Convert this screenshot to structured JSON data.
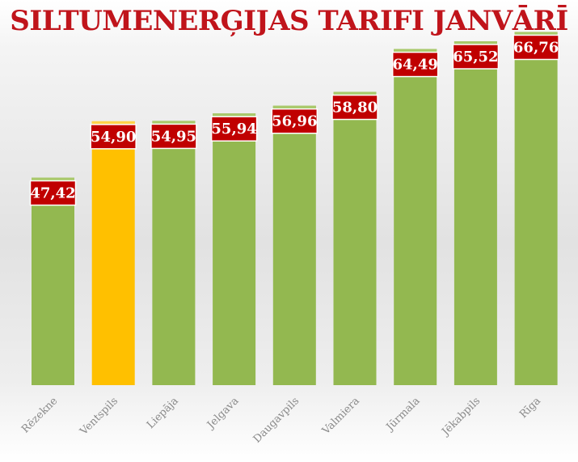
{
  "chart_data": {
    "type": "bar",
    "title": "SILTUMENERĢIJAS TARIFI JANVĀRĪ",
    "categories": [
      "Rēzekne",
      "Ventspils",
      "Liepāja",
      "Jelgava",
      "Daugavpils",
      "Valmiera",
      "Jūrmala",
      "Jēkabpils",
      "Rīga"
    ],
    "values": [
      47.42,
      54.9,
      54.95,
      55.94,
      56.96,
      58.8,
      64.49,
      65.52,
      66.76
    ],
    "value_labels": [
      "47,42",
      "54,90",
      "54,95",
      "55,94",
      "56,96",
      "58,80",
      "64,49",
      "65,52",
      "66,76"
    ],
    "highlight_index": 1,
    "xlabel": "",
    "ylabel": "",
    "grid": false,
    "legend": "none"
  },
  "colors": {
    "bar": "#93b850",
    "bar_top": "#a9c96b",
    "highlight": "#ffc000",
    "highlight_top": "#ffd24a",
    "label_bg": "#c00000",
    "label_border": "#ffffff",
    "title": "#c0141b",
    "category_text": "#8a8a8a"
  }
}
